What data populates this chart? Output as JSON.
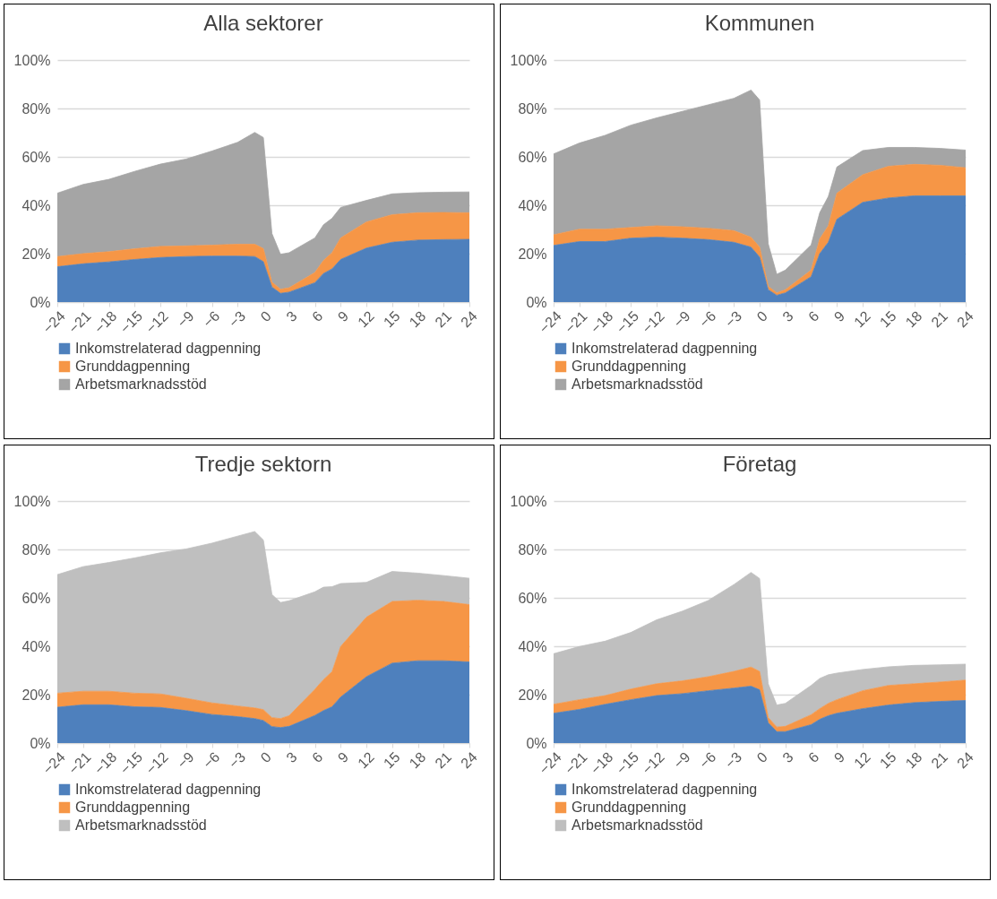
{
  "chart_data": [
    {
      "type": "area",
      "title": "Alla sektorer",
      "stacked": true,
      "grid": "y",
      "legend": "bottom",
      "x": [
        -24,
        -21,
        -18,
        -15,
        -12,
        -9,
        -6,
        -3,
        -1,
        0,
        1,
        2,
        3,
        6,
        7,
        8,
        9,
        12,
        15,
        18,
        21,
        24
      ],
      "xlim": [
        -24,
        24
      ],
      "xticks": [
        -24,
        -21,
        -18,
        -15,
        -12,
        -9,
        -6,
        -3,
        0,
        3,
        6,
        9,
        12,
        15,
        18,
        21,
        24
      ],
      "ylim": [
        0,
        100
      ],
      "yticks": [
        {
          "value": 0,
          "label": "0%"
        },
        {
          "value": 20,
          "label": "20%"
        },
        {
          "value": 40,
          "label": "40%"
        },
        {
          "value": 60,
          "label": "60%"
        },
        {
          "value": 80,
          "label": "80%"
        },
        {
          "value": 100,
          "label": "100%"
        }
      ],
      "series": [
        {
          "name": "Inkomstrelaterad dagpenning",
          "color": "#4e80bd",
          "values": [
            14.6,
            15.8,
            16.6,
            17.6,
            18.4,
            18.8,
            19,
            19,
            18.8,
            16.7,
            6.2,
            3.6,
            4.1,
            8,
            11.8,
            13.7,
            17.6,
            22.3,
            24.7,
            25.6,
            25.8,
            25.9
          ]
        },
        {
          "name": "Grunddagpenning",
          "color": "#f69646",
          "values": [
            4.2,
            4.2,
            4.2,
            4.4,
            4.6,
            4.4,
            4.5,
            4.9,
            5.1,
            5.4,
            2,
            1.7,
            1.8,
            4.2,
            5.4,
            6.7,
            8.9,
            10.8,
            11.4,
            11.3,
            11.2,
            11
          ]
        },
        {
          "name": "Arbetsmarknadsstöd",
          "color": "#a5a5a5",
          "values": [
            26.2,
            28.6,
            29.9,
            32,
            34,
            35.9,
            38.9,
            42.1,
            46.2,
            45.9,
            20.1,
            14.4,
            14.5,
            14.3,
            14.7,
            14.2,
            12.6,
            8.9,
            8.6,
            8.3,
            8.4,
            8.6
          ]
        }
      ]
    },
    {
      "type": "area",
      "title": "Kommunen",
      "stacked": true,
      "grid": "y",
      "legend": "bottom",
      "x": [
        -24,
        -21,
        -18,
        -15,
        -12,
        -9,
        -6,
        -3,
        -1,
        0,
        1,
        2,
        3,
        6,
        7,
        8,
        9,
        12,
        15,
        18,
        21,
        24
      ],
      "xlim": [
        -24,
        24
      ],
      "xticks": [
        -24,
        -21,
        -18,
        -15,
        -12,
        -9,
        -6,
        -3,
        0,
        3,
        6,
        9,
        12,
        15,
        18,
        21,
        24
      ],
      "ylim": [
        0,
        100
      ],
      "yticks": [
        {
          "value": 0,
          "label": "0%"
        },
        {
          "value": 20,
          "label": "20%"
        },
        {
          "value": 40,
          "label": "40%"
        },
        {
          "value": 60,
          "label": "60%"
        },
        {
          "value": 80,
          "label": "80%"
        },
        {
          "value": 100,
          "label": "100%"
        }
      ],
      "series": [
        {
          "name": "Inkomstrelaterad dagpenning",
          "color": "#4e80bd",
          "values": [
            23.4,
            25,
            25,
            26.4,
            26.8,
            26.4,
            25.8,
            24.7,
            22.7,
            18.6,
            5.1,
            2.8,
            3.8,
            10.5,
            20,
            24.7,
            34.2,
            41.2,
            43,
            43.9,
            43.9,
            43.9
          ]
        },
        {
          "name": "Grunddagpenning",
          "color": "#f69646",
          "values": [
            4.4,
            5.1,
            5.1,
            4.4,
            4.7,
            4.7,
            4.7,
            4.8,
            4.1,
            4.1,
            1.4,
            1,
            1.3,
            2.7,
            6.1,
            6.8,
            10.8,
            11.4,
            13.1,
            13,
            12.6,
            11.6
          ]
        },
        {
          "name": "Arbetsmarknadsstöd",
          "color": "#a5a5a5",
          "values": [
            33.4,
            35.6,
            38.8,
            42.3,
            44.6,
            47.7,
            51,
            54.7,
            60.8,
            60.8,
            17.6,
            7.7,
            8.1,
            10.4,
            10.8,
            12.1,
            10.8,
            10,
            7.8,
            7,
            7,
            7.3
          ]
        }
      ]
    },
    {
      "type": "area",
      "title": "Tredje sektorn",
      "stacked": true,
      "grid": "y",
      "legend": "bottom",
      "x": [
        -24,
        -21,
        -18,
        -15,
        -12,
        -9,
        -6,
        -3,
        -1,
        0,
        1,
        2,
        3,
        6,
        7,
        8,
        9,
        12,
        15,
        18,
        21,
        24
      ],
      "xlim": [
        -24,
        24
      ],
      "xticks": [
        -24,
        -21,
        -18,
        -15,
        -12,
        -9,
        -6,
        -3,
        0,
        3,
        6,
        9,
        12,
        15,
        18,
        21,
        24
      ],
      "ylim": [
        0,
        100
      ],
      "yticks": [
        {
          "value": 0,
          "label": "0%"
        },
        {
          "value": 20,
          "label": "20%"
        },
        {
          "value": 40,
          "label": "40%"
        },
        {
          "value": 60,
          "label": "60%"
        },
        {
          "value": 80,
          "label": "80%"
        },
        {
          "value": 100,
          "label": "100%"
        }
      ],
      "series": [
        {
          "name": "Inkomstrelaterad dagpenning",
          "color": "#4e80bd",
          "values": [
            14.8,
            15.8,
            15.8,
            15,
            14.7,
            13.4,
            11.8,
            10.9,
            10.1,
            9.3,
            6.8,
            6.4,
            6.9,
            11.4,
            13.4,
            15,
            19,
            27.4,
            33,
            34,
            34,
            33.5
          ]
        },
        {
          "name": "Grunddagpenning",
          "color": "#f69646",
          "values": [
            5.8,
            5.6,
            5.6,
            5.6,
            5.6,
            5.1,
            4.8,
            4.4,
            4.4,
            4.5,
            3.7,
            3.7,
            4.4,
            10.8,
            12.8,
            14.5,
            20.9,
            24.6,
            25.5,
            25,
            24.5,
            23.7
          ]
        },
        {
          "name": "Arbetsmarknadsstöd",
          "color": "#bfbfbf",
          "values": [
            49,
            51.5,
            53.2,
            55.9,
            58.3,
            61.7,
            66,
            70.2,
            72.9,
            70.1,
            50.9,
            48,
            47.5,
            40.3,
            38.2,
            35.1,
            26,
            14.4,
            12.4,
            11.2,
            10.7,
            10.9
          ]
        }
      ]
    },
    {
      "type": "area",
      "title": "Företag",
      "stacked": true,
      "grid": "y",
      "legend": "bottom",
      "x": [
        -24,
        -21,
        -18,
        -15,
        -12,
        -9,
        -6,
        -3,
        -1,
        0,
        1,
        2,
        3,
        6,
        7,
        8,
        9,
        12,
        15,
        18,
        21,
        24
      ],
      "xlim": [
        -24,
        24
      ],
      "xticks": [
        -24,
        -21,
        -18,
        -15,
        -12,
        -9,
        -6,
        -3,
        0,
        3,
        6,
        9,
        12,
        15,
        18,
        21,
        24
      ],
      "ylim": [
        0,
        100
      ],
      "yticks": [
        {
          "value": 0,
          "label": "0%"
        },
        {
          "value": 20,
          "label": "20%"
        },
        {
          "value": 40,
          "label": "40%"
        },
        {
          "value": 60,
          "label": "60%"
        },
        {
          "value": 80,
          "label": "80%"
        },
        {
          "value": 100,
          "label": "100%"
        }
      ],
      "series": [
        {
          "name": "Inkomstrelaterad dagpenning",
          "color": "#4e80bd",
          "values": [
            12.3,
            13.9,
            16,
            17.9,
            19.6,
            20.4,
            21.6,
            22.7,
            23.5,
            22,
            8.4,
            4.7,
            4.7,
            7.6,
            9.8,
            11.3,
            12.3,
            14.2,
            15.7,
            16.7,
            17.2,
            17.6
          ]
        },
        {
          "name": "Grunddagpenning",
          "color": "#f69646",
          "values": [
            3.7,
            4,
            3.6,
            4.4,
            4.9,
            5.3,
            5.8,
            6.9,
            7.9,
            7.6,
            2.2,
            1.9,
            2.2,
            4.1,
            4.4,
            5.1,
            5.6,
            7.4,
            8.1,
            7.8,
            8,
            8.4
          ]
        },
        {
          "name": "Arbetsmarknadsstöd",
          "color": "#bfbfbf",
          "values": [
            20.9,
            22,
            22.5,
            23.4,
            26.4,
            28.8,
            31.5,
            35.9,
            39.1,
            38.4,
            13.9,
            9.1,
            9.5,
            12.1,
            12.5,
            11.8,
            11,
            8.8,
            7.7,
            7.6,
            7.1,
            6.6
          ]
        }
      ]
    }
  ]
}
